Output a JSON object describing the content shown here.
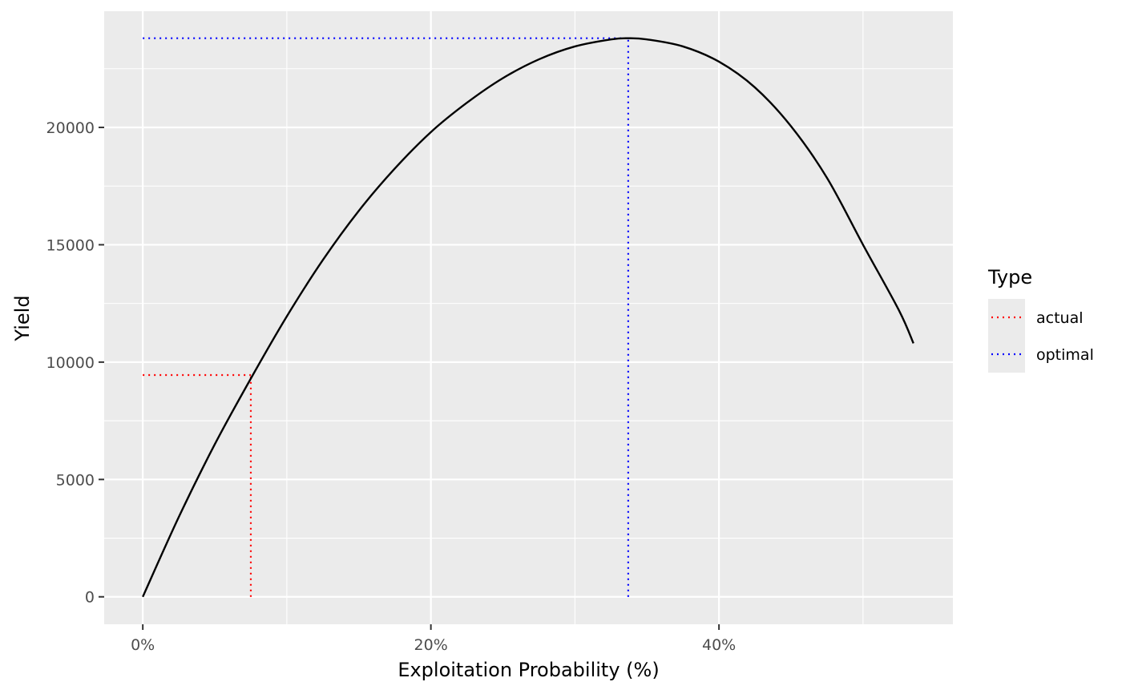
{
  "chart_data": {
    "type": "line",
    "title": "",
    "xlabel": "Exploitation Probability (%)",
    "ylabel": "Yield",
    "xlim": [
      -0.0268,
      0.5624
    ],
    "ylim": [
      -1170,
      24950
    ],
    "x_ticks": [
      0,
      0.2,
      0.4
    ],
    "x_tick_labels": [
      "0%",
      "20%",
      "40%"
    ],
    "x_minor_ticks": [
      0.1,
      0.3,
      0.5
    ],
    "y_ticks": [
      0,
      5000,
      10000,
      15000,
      20000
    ],
    "y_tick_labels": [
      "0",
      "5000",
      "10000",
      "15000",
      "20000"
    ],
    "y_minor_ticks": [
      2500,
      7500,
      12500,
      17500,
      22500
    ],
    "grid": true,
    "curve": {
      "x": [
        0,
        0.025,
        0.05,
        0.075,
        0.1,
        0.125,
        0.15,
        0.175,
        0.2,
        0.225,
        0.25,
        0.275,
        0.3,
        0.325,
        0.337,
        0.35,
        0.375,
        0.4,
        0.425,
        0.45,
        0.475,
        0.5,
        0.525,
        0.535
      ],
      "y": [
        0,
        3400,
        6500,
        9300,
        11950,
        14350,
        16450,
        18250,
        19800,
        21050,
        22100,
        22900,
        23450,
        23750,
        23800,
        23750,
        23450,
        22800,
        21700,
        20050,
        17850,
        15000,
        12200,
        10800
      ],
      "color": "#000000"
    },
    "series": [
      {
        "name": "actual",
        "color": "#ff0000",
        "x": 0.075,
        "y": 9450
      },
      {
        "name": "optimal",
        "color": "#0000ff",
        "x": 0.337,
        "y": 23800
      }
    ],
    "legend": {
      "title": "Type",
      "position": "right"
    }
  }
}
